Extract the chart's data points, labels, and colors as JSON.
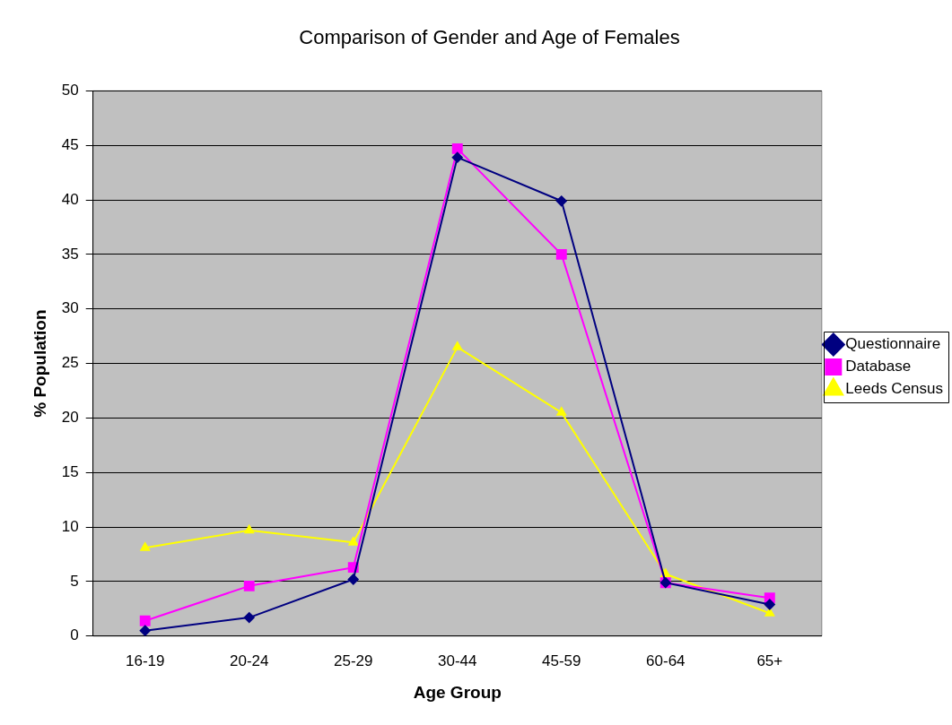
{
  "chart_data": {
    "type": "line",
    "title": "Comparison of Gender and Age of Females",
    "xlabel": "Age Group",
    "ylabel": "% Population",
    "categories": [
      "16-19",
      "20-24",
      "25-29",
      "30-44",
      "45-59",
      "60-64",
      "65+"
    ],
    "series": [
      {
        "name": "Questionnaire",
        "color": "#000080",
        "marker": "diamond",
        "values": [
          0.5,
          1.7,
          5.2,
          43.9,
          39.9,
          4.9,
          2.9
        ]
      },
      {
        "name": "Database",
        "color": "#ff00ff",
        "marker": "square",
        "values": [
          1.4,
          4.6,
          6.3,
          44.7,
          35,
          4.9,
          3.5
        ]
      },
      {
        "name": "Leeds Census",
        "color": "#ffff00",
        "marker": "triangle",
        "values": [
          8.1,
          9.7,
          8.6,
          26.5,
          20.5,
          5.7,
          2.1
        ]
      }
    ],
    "ylim": [
      0,
      50
    ],
    "yticks": [
      0,
      5,
      10,
      15,
      20,
      25,
      30,
      35,
      40,
      45,
      50
    ],
    "grid": "y",
    "legend": "right"
  }
}
